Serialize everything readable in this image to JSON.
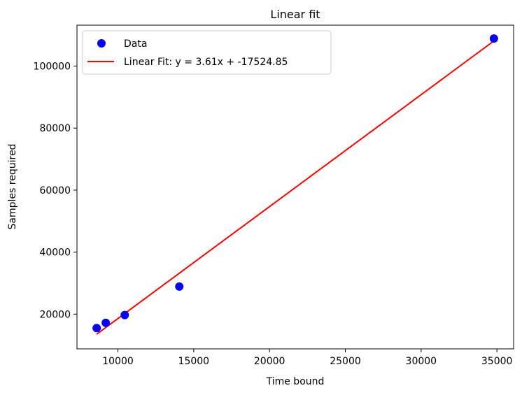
{
  "chart_data": {
    "type": "scatter",
    "title": "Linear fit",
    "xlabel": "Time bound",
    "ylabel": "Samples required",
    "xlim": [
      7300,
      36100
    ],
    "ylim": [
      8800,
      113200
    ],
    "xticks": [
      10000,
      15000,
      20000,
      25000,
      30000,
      35000
    ],
    "xtick_labels": [
      "10000",
      "15000",
      "20000",
      "25000",
      "30000",
      "35000"
    ],
    "yticks": [
      20000,
      40000,
      60000,
      80000,
      100000
    ],
    "ytick_labels": [
      "20000",
      "40000",
      "60000",
      "80000",
      "100000"
    ],
    "grid": false,
    "legend_position": "top-left",
    "series": [
      {
        "name": "Data",
        "kind": "scatter",
        "color": "#0000ff",
        "x": [
          8600,
          9200,
          10450,
          14050,
          34800
        ],
        "y": [
          15500,
          17200,
          19700,
          28900,
          108900
        ]
      },
      {
        "name": "Linear Fit: y = 3.61x + -17524.85",
        "kind": "line",
        "color": "#ff0000",
        "slope": 3.61,
        "intercept": -17524.85,
        "x_range": [
          8600,
          34800
        ]
      }
    ]
  }
}
